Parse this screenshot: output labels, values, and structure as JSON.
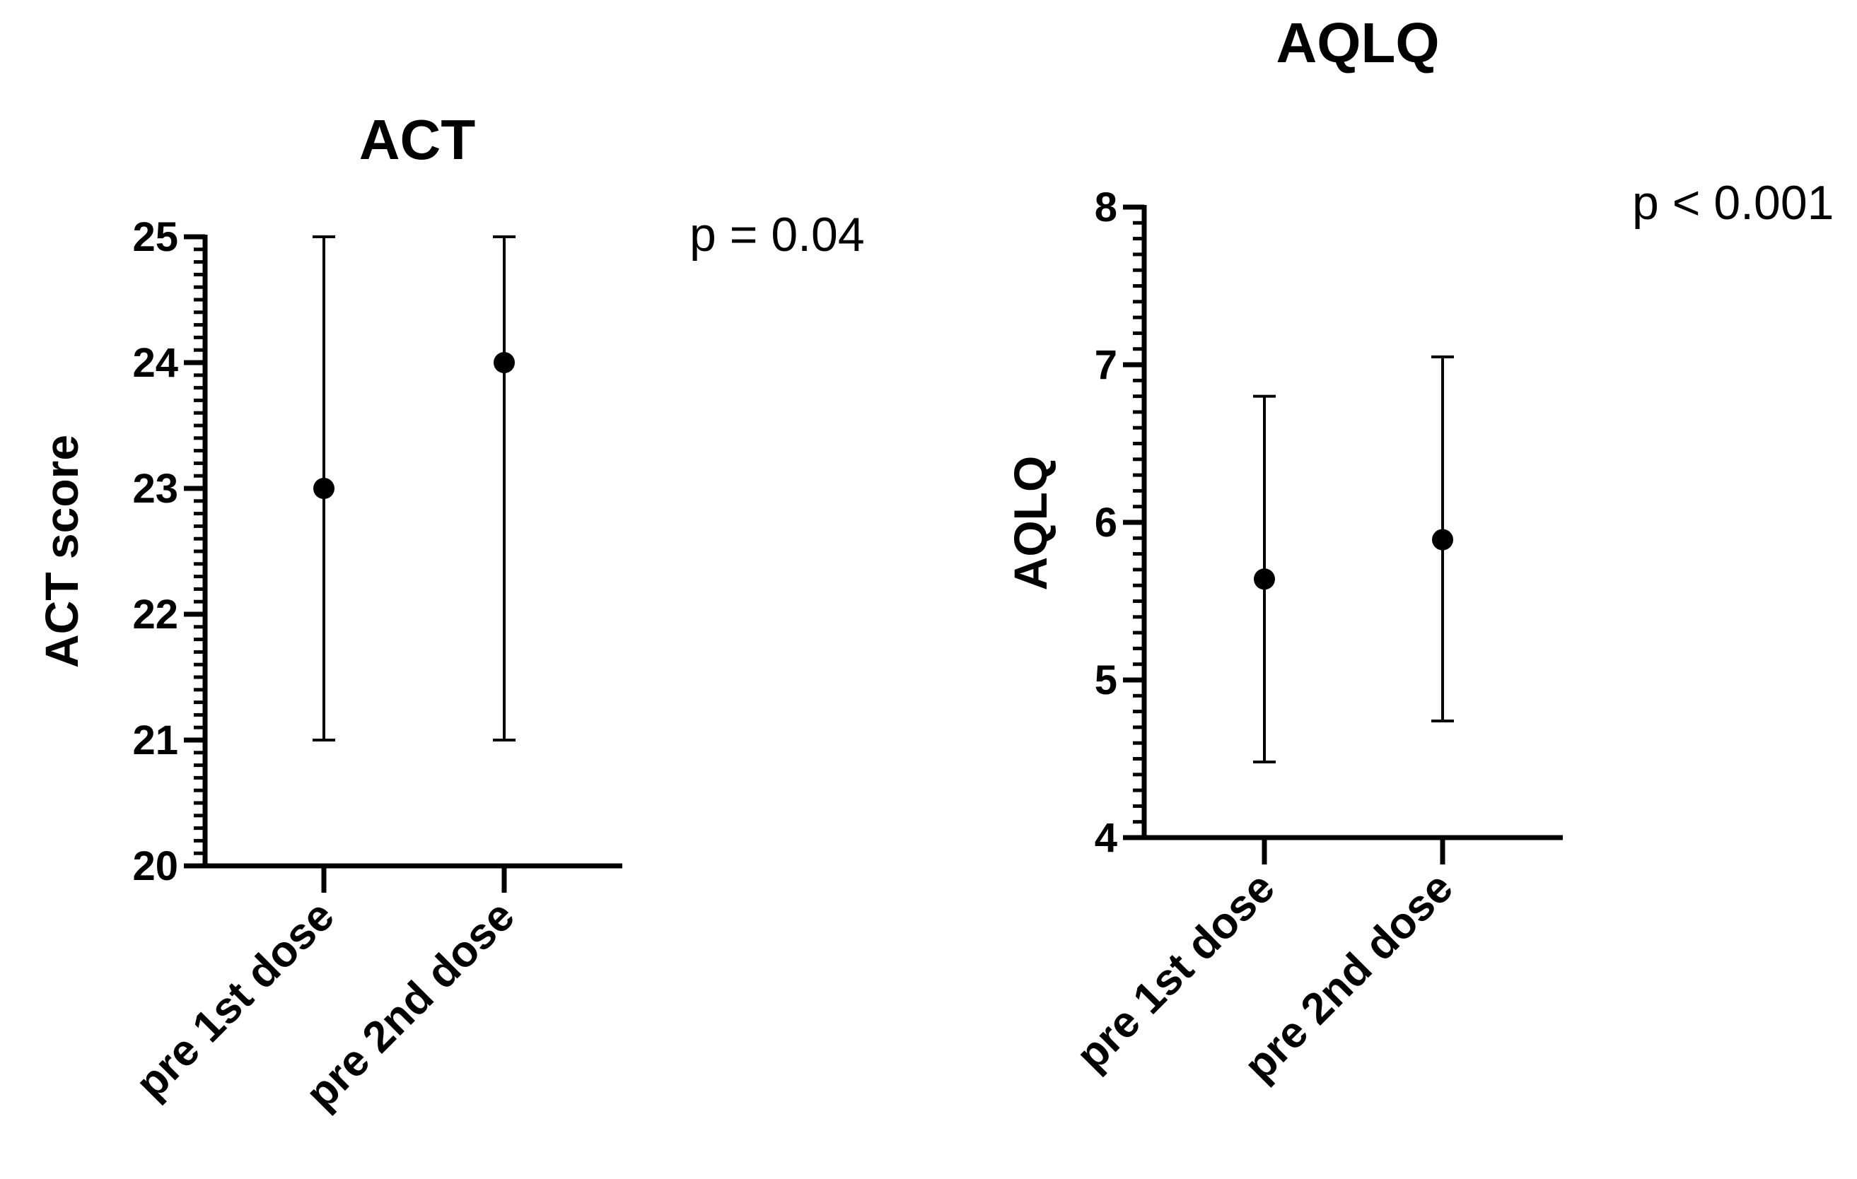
{
  "chart_data": [
    {
      "type": "scatter",
      "title": "ACT",
      "xlabel": "",
      "ylabel": "ACT score",
      "categories": [
        "pre 1st dose",
        "pre 2nd dose"
      ],
      "ylim": [
        20,
        25
      ],
      "yticks": [
        "20",
        "21",
        "22",
        "23",
        "24",
        "25"
      ],
      "series": [
        {
          "values": [
            23,
            24
          ],
          "error_low": [
            21,
            21
          ],
          "error_high": [
            25,
            25
          ]
        }
      ],
      "annotation": "p = 0.04",
      "grid": false,
      "legend": "none"
    },
    {
      "type": "scatter",
      "title": "AQLQ",
      "xlabel": "",
      "ylabel": "AQLQ",
      "categories": [
        "pre 1st dose",
        "pre 2nd dose"
      ],
      "ylim": [
        4,
        8
      ],
      "yticks": [
        "4",
        "5",
        "6",
        "7",
        "8"
      ],
      "series": [
        {
          "values": [
            5.64,
            5.89
          ],
          "error_low": [
            4.48,
            4.74
          ],
          "error_high": [
            6.8,
            7.05
          ]
        }
      ],
      "annotation": "p < 0.001",
      "grid": false,
      "legend": "none"
    }
  ]
}
